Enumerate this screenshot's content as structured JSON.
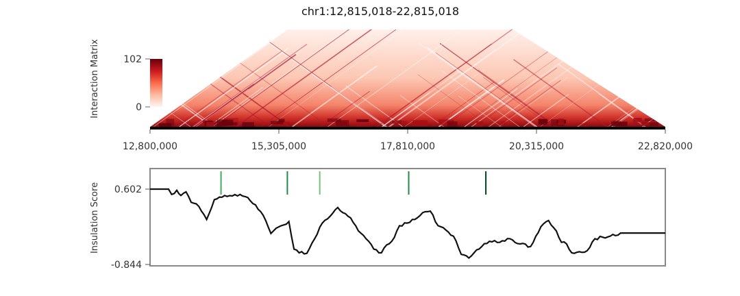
{
  "title": "chr1:12,815,018-22,815,018",
  "colors": {
    "heat_low": "#fff5f0",
    "heat_high": "#67000d",
    "line": "#111111",
    "frame": "#888888"
  },
  "chart_data": [
    {
      "type": "heatmap",
      "ylabel": "Interaction Matrix",
      "colorbar": {
        "min": 0,
        "max": 102,
        "min_label": "0",
        "max_label": "102",
        "colormap": "Reds"
      },
      "x_ticks": [
        "12,800,000",
        "15,305,000",
        "17,810,000",
        "20,315,000",
        "22,820,000"
      ],
      "xlim": [
        12800000,
        22820000
      ]
    },
    {
      "type": "line",
      "ylabel": "Insulation Score",
      "ylim": [
        -0.844,
        0.602
      ],
      "y_ticks": [
        "0.602",
        "-0.844"
      ],
      "x": [
        12800000,
        13160000,
        13220000,
        13320000,
        13400000,
        13500000,
        13600000,
        13700000,
        13800000,
        13900000,
        14050000,
        14150000,
        14250000,
        14400000,
        14550000,
        14700000,
        14850000,
        15000000,
        15150000,
        15250000,
        15350000,
        15500000,
        15600000,
        15700000,
        15850000,
        16000000,
        16150000,
        16300000,
        16450000,
        16550000,
        16700000,
        16850000,
        17000000,
        17150000,
        17300000,
        17400000,
        17500000,
        17650000,
        17800000,
        17950000,
        18100000,
        18250000,
        18400000,
        18550000,
        18700000,
        18850000,
        19000000,
        19100000,
        19250000,
        19400000,
        19600000,
        19800000,
        20000000,
        20200000,
        20400000,
        20550000,
        20700000,
        20800000,
        20900000,
        21000000,
        21150000,
        21300000,
        21450000,
        21600000,
        21750000,
        21900000,
        21950000,
        22820000
      ],
      "y": [
        0.602,
        0.602,
        0.5,
        0.58,
        0.48,
        0.55,
        0.35,
        0.32,
        0.18,
        0.02,
        0.4,
        0.45,
        0.48,
        0.47,
        0.5,
        0.44,
        0.3,
        0.1,
        -0.25,
        -0.15,
        -0.1,
        -0.02,
        -0.55,
        -0.62,
        -0.63,
        -0.35,
        -0.05,
        0.08,
        0.25,
        0.15,
        0.05,
        -0.2,
        -0.35,
        -0.55,
        -0.62,
        -0.47,
        -0.4,
        -0.1,
        -0.05,
        0.02,
        0.15,
        0.18,
        -0.1,
        -0.18,
        -0.3,
        -0.65,
        -0.72,
        -0.62,
        -0.5,
        -0.4,
        -0.42,
        -0.35,
        -0.45,
        -0.5,
        -0.12,
        0.0,
        -0.2,
        -0.42,
        -0.45,
        -0.62,
        -0.6,
        -0.58,
        -0.35,
        -0.32,
        -0.3,
        -0.28,
        -0.24,
        -0.24
      ]
    }
  ],
  "boundaries": [
    {
      "x": 14180000,
      "color": "#41ab5d"
    },
    {
      "x": 15470000,
      "color": "#238b45"
    },
    {
      "x": 16100000,
      "color": "#74c476"
    },
    {
      "x": 17830000,
      "color": "#238b45"
    },
    {
      "x": 19330000,
      "color": "#00441b"
    }
  ]
}
